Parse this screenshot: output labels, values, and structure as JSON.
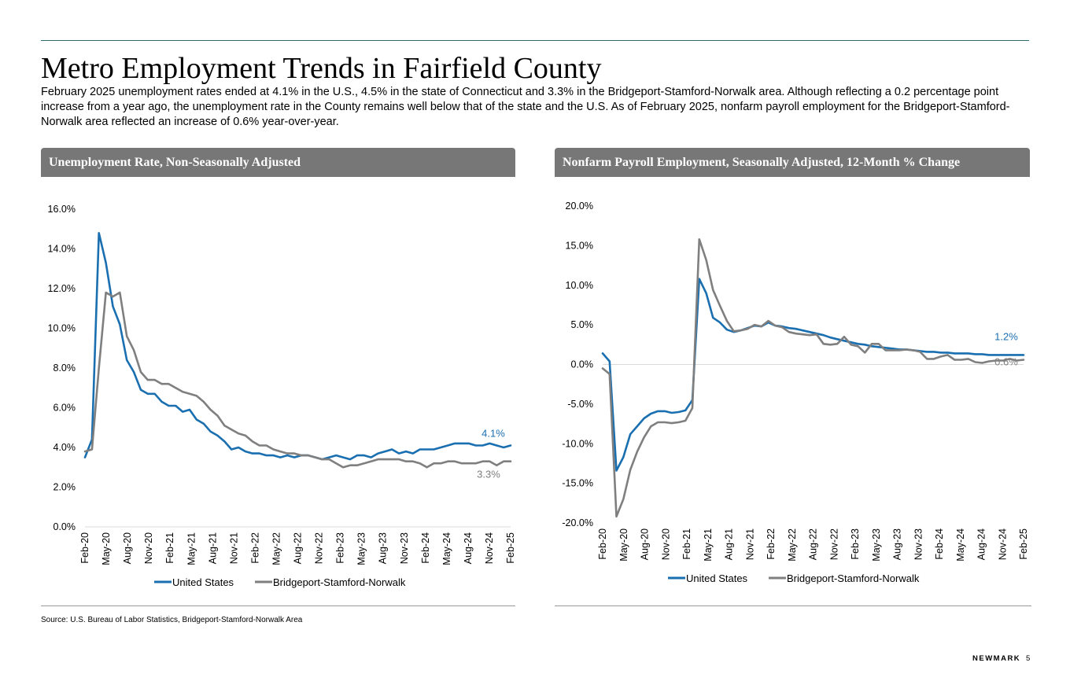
{
  "page": {
    "title": "Metro Employment Trends in Fairfield County",
    "intro": "February 2025 unemployment rates ended at 4.1% in the U.S., 4.5% in the state of Connecticut and 3.3% in the Bridgeport-Stamford-Norwalk area. Although reflecting a 0.2 percentage point increase from a year ago, the unemployment rate in the County remains well below that of the state and the U.S. As of February 2025, nonfarm payroll employment for the Bridgeport-Stamford-Norwalk area reflected an increase of 0.6% year-over-year.",
    "source": "Source: U.S. Bureau of Labor Statistics, Bridgeport-Stamford-Norwalk Area",
    "brand": "NEWMARK",
    "page_number": "5"
  },
  "colors": {
    "us": "#1a6fb0",
    "bsn": "#7f7f7f",
    "header_bg": "#777777",
    "rule": "#2e6b6b"
  },
  "chart_data": [
    {
      "type": "line",
      "title": "Unemployment Rate, Non-Seasonally Adjusted",
      "ylim": [
        0,
        16
      ],
      "yticks": [
        0,
        2,
        4,
        6,
        8,
        10,
        12,
        14,
        16
      ],
      "ytick_labels": [
        "0.0%",
        "2.0%",
        "4.0%",
        "6.0%",
        "8.0%",
        "10.0%",
        "12.0%",
        "14.0%",
        "16.0%"
      ],
      "xtick_labels": [
        "Feb-20",
        "May-20",
        "Aug-20",
        "Nov-20",
        "Feb-21",
        "May-21",
        "Aug-21",
        "Nov-21",
        "Feb-22",
        "May-22",
        "Aug-22",
        "Nov-22",
        "Feb-23",
        "May-23",
        "Aug-23",
        "Nov-23",
        "Feb-24",
        "May-24",
        "Aug-24",
        "Nov-24",
        "Feb-25"
      ],
      "series": [
        {
          "name": "United States",
          "end_label": "4.1%",
          "values": [
            3.5,
            4.4,
            14.8,
            13.3,
            11.1,
            10.2,
            8.4,
            7.8,
            6.9,
            6.7,
            6.7,
            6.3,
            6.1,
            6.1,
            5.8,
            5.9,
            5.4,
            5.2,
            4.8,
            4.6,
            4.3,
            3.9,
            4.0,
            3.8,
            3.7,
            3.7,
            3.6,
            3.6,
            3.5,
            3.6,
            3.5,
            3.6,
            3.6,
            3.5,
            3.4,
            3.5,
            3.6,
            3.5,
            3.4,
            3.6,
            3.6,
            3.5,
            3.7,
            3.8,
            3.9,
            3.7,
            3.8,
            3.7,
            3.9,
            3.9,
            3.9,
            4.0,
            4.1,
            4.2,
            4.2,
            4.2,
            4.1,
            4.1,
            4.2,
            4.1,
            4.0,
            4.1
          ]
        },
        {
          "name": "Bridgeport-Stamford-Norwalk",
          "end_label": "3.3%",
          "values": [
            3.8,
            3.9,
            8.0,
            11.8,
            11.6,
            11.8,
            9.6,
            8.9,
            7.8,
            7.4,
            7.4,
            7.2,
            7.2,
            7.0,
            6.8,
            6.7,
            6.6,
            6.3,
            5.9,
            5.6,
            5.1,
            4.9,
            4.7,
            4.6,
            4.3,
            4.1,
            4.1,
            3.9,
            3.8,
            3.7,
            3.7,
            3.6,
            3.6,
            3.5,
            3.4,
            3.4,
            3.2,
            3.0,
            3.1,
            3.1,
            3.2,
            3.3,
            3.4,
            3.4,
            3.4,
            3.4,
            3.3,
            3.3,
            3.2,
            3.0,
            3.2,
            3.2,
            3.3,
            3.3,
            3.2,
            3.2,
            3.2,
            3.3,
            3.3,
            3.1,
            3.3,
            3.3
          ]
        }
      ]
    },
    {
      "type": "line",
      "title": "Nonfarm Payroll Employment, Seasonally Adjusted, 12-Month % Change",
      "ylim": [
        -20,
        20
      ],
      "yticks": [
        -20,
        -15,
        -10,
        -5,
        0,
        5,
        10,
        15,
        20
      ],
      "ytick_labels": [
        "-20.0%",
        "-15.0%",
        "-10.0%",
        "-5.0%",
        "0.0%",
        "5.0%",
        "10.0%",
        "15.0%",
        "20.0%"
      ],
      "xtick_labels": [
        "Feb-20",
        "May-20",
        "Aug-20",
        "Nov-20",
        "Feb-21",
        "May-21",
        "Aug-21",
        "Nov-21",
        "Feb-22",
        "May-22",
        "Aug-22",
        "Nov-22",
        "Feb-23",
        "May-23",
        "Aug-23",
        "Nov-23",
        "Feb-24",
        "May-24",
        "Aug-24",
        "Nov-24",
        "Feb-25"
      ],
      "series": [
        {
          "name": "United States",
          "end_label": "1.2%",
          "values": [
            1.4,
            0.4,
            -13.4,
            -11.7,
            -8.8,
            -7.8,
            -6.8,
            -6.2,
            -5.9,
            -5.9,
            -6.1,
            -6.0,
            -5.8,
            -4.5,
            10.8,
            9.0,
            5.9,
            5.3,
            4.4,
            4.1,
            4.3,
            4.6,
            4.9,
            4.8,
            5.3,
            4.9,
            4.8,
            4.6,
            4.5,
            4.3,
            4.1,
            3.9,
            3.7,
            3.4,
            3.2,
            3.0,
            2.8,
            2.6,
            2.5,
            2.3,
            2.2,
            2.1,
            2.0,
            1.9,
            1.9,
            1.8,
            1.7,
            1.6,
            1.6,
            1.5,
            1.5,
            1.4,
            1.4,
            1.4,
            1.3,
            1.3,
            1.2,
            1.2,
            1.2,
            1.2,
            1.2,
            1.2
          ]
        },
        {
          "name": "Bridgeport-Stamford-Norwalk",
          "end_label": "0.6%",
          "values": [
            -0.5,
            -1.2,
            -19.2,
            -17.0,
            -13.3,
            -11.0,
            -9.2,
            -7.8,
            -7.3,
            -7.3,
            -7.4,
            -7.3,
            -7.1,
            -5.5,
            15.8,
            13.2,
            9.4,
            7.4,
            5.5,
            4.2,
            4.3,
            4.5,
            5.0,
            4.8,
            5.5,
            4.9,
            4.7,
            4.1,
            3.9,
            3.8,
            3.7,
            3.8,
            2.6,
            2.5,
            2.6,
            3.5,
            2.5,
            2.3,
            1.5,
            2.6,
            2.6,
            1.8,
            1.8,
            1.8,
            1.9,
            1.8,
            1.6,
            0.7,
            0.7,
            1.0,
            1.2,
            0.6,
            0.6,
            0.7,
            0.3,
            0.2,
            0.4,
            0.5,
            0.5,
            0.7,
            0.5,
            0.6
          ]
        }
      ]
    }
  ]
}
